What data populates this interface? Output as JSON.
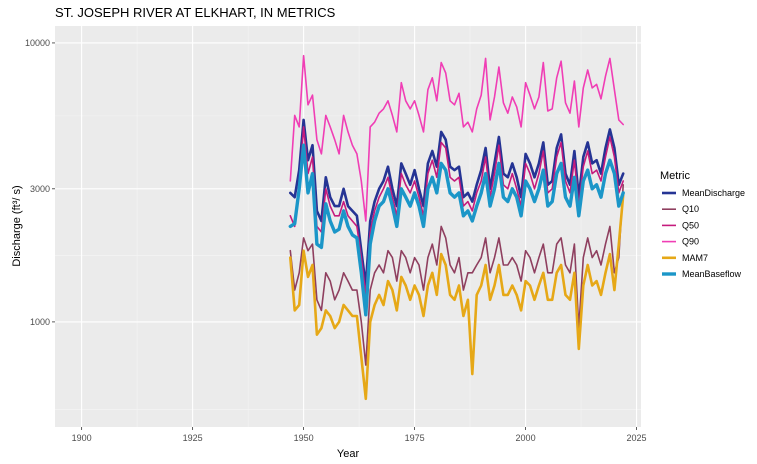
{
  "chart_data": {
    "type": "line",
    "title": "ST. JOSEPH RIVER AT ELKHART, IN  METRICS",
    "xlabel": "Year",
    "ylabel": "Discharge (ft³/ s)",
    "x_scale": "linear",
    "y_scale": "log",
    "xlim": [
      1894,
      2026
    ],
    "ylim": [
      420,
      11500
    ],
    "x_ticks": [
      1900,
      1925,
      1950,
      1975,
      2000,
      2025
    ],
    "x_tick_labels": [
      "1900",
      "1925",
      "1950",
      "1975",
      "2000",
      "2025"
    ],
    "y_ticks": [
      1000,
      3000,
      10000
    ],
    "y_tick_labels": [
      "1000",
      "3000",
      "10000"
    ],
    "grid": true,
    "legend": {
      "title": "Metric",
      "position": "right"
    },
    "x": [
      1947,
      1948,
      1949,
      1950,
      1951,
      1952,
      1953,
      1954,
      1955,
      1956,
      1957,
      1958,
      1959,
      1960,
      1961,
      1962,
      1963,
      1964,
      1965,
      1966,
      1967,
      1968,
      1969,
      1970,
      1971,
      1972,
      1973,
      1974,
      1975,
      1976,
      1977,
      1978,
      1979,
      1980,
      1981,
      1982,
      1983,
      1984,
      1985,
      1986,
      1987,
      1988,
      1989,
      1990,
      1991,
      1992,
      1993,
      1994,
      1995,
      1996,
      1997,
      1998,
      1999,
      2000,
      2001,
      2002,
      2003,
      2004,
      2005,
      2006,
      2007,
      2008,
      2009,
      2010,
      2011,
      2012,
      2013,
      2014,
      2015,
      2016,
      2017,
      2018,
      2019,
      2020,
      2021,
      2022
    ],
    "series": [
      {
        "name": "MeanDischarge",
        "color": "#253494",
        "width": 2.6,
        "values": [
          2900,
          2800,
          3500,
          5300,
          3800,
          4300,
          2500,
          2300,
          3300,
          2800,
          2600,
          2600,
          3000,
          2600,
          2500,
          2400,
          1800,
          1350,
          2300,
          2700,
          3000,
          3200,
          3600,
          3000,
          2600,
          3700,
          3400,
          3100,
          3500,
          3000,
          2600,
          3700,
          4100,
          3600,
          4800,
          4500,
          3600,
          3500,
          3600,
          2800,
          2900,
          2700,
          3100,
          3500,
          4200,
          3000,
          3700,
          4600,
          3400,
          3300,
          3700,
          3300,
          2800,
          4000,
          3700,
          3300,
          3700,
          4400,
          3100,
          3200,
          4200,
          4700,
          3400,
          3100,
          4100,
          2800,
          3900,
          4400,
          3700,
          3800,
          3400,
          4200,
          4900,
          4200,
          3100,
          3400
        ]
      },
      {
        "name": "Q10",
        "color": "#8f3f5f",
        "width": 1.6,
        "values": [
          1800,
          1300,
          1500,
          2000,
          1800,
          1900,
          1200,
          1100,
          1500,
          1400,
          1200,
          1300,
          1500,
          1400,
          1300,
          1300,
          1000,
          700,
          1300,
          1500,
          1600,
          1500,
          1800,
          1700,
          1400,
          1800,
          1700,
          1500,
          1700,
          1600,
          1300,
          1700,
          1900,
          1600,
          2200,
          2000,
          1600,
          1500,
          1700,
          1300,
          1500,
          1500,
          1600,
          1700,
          2000,
          1500,
          1700,
          2000,
          1600,
          1600,
          1700,
          1600,
          1400,
          1800,
          1700,
          1500,
          1700,
          1900,
          1500,
          1500,
          1900,
          2000,
          1600,
          1500,
          1900,
          950,
          1700,
          2000,
          1700,
          1800,
          1600,
          1900,
          2200,
          1500,
          1700,
          3100
        ]
      },
      {
        "name": "Q50",
        "color": "#c51b7d",
        "width": 1.6,
        "values": [
          2400,
          2200,
          3000,
          5000,
          3400,
          3900,
          2200,
          2100,
          3000,
          2600,
          2400,
          2400,
          2700,
          2400,
          2300,
          2200,
          1700,
          1250,
          2100,
          2500,
          2800,
          3000,
          3300,
          2800,
          2400,
          3400,
          3100,
          2900,
          3200,
          2800,
          2400,
          3400,
          3800,
          3300,
          4400,
          4200,
          3300,
          3200,
          3300,
          2600,
          2700,
          2500,
          2900,
          3200,
          3900,
          2800,
          3400,
          4300,
          3100,
          3000,
          3400,
          3000,
          2600,
          3700,
          3400,
          3000,
          3400,
          4100,
          2900,
          3000,
          3900,
          4400,
          3200,
          2900,
          3800,
          2600,
          3600,
          4100,
          3400,
          3500,
          3200,
          3900,
          4600,
          3900,
          2900,
          3200
        ]
      },
      {
        "name": "Q90",
        "color": "#f03eb5",
        "width": 1.6,
        "values": [
          3200,
          5500,
          5000,
          9000,
          6000,
          6500,
          4500,
          4000,
          5500,
          5000,
          4500,
          4000,
          5500,
          4800,
          4300,
          4000,
          3200,
          2300,
          5000,
          5200,
          5600,
          5800,
          6200,
          5500,
          4800,
          7200,
          6200,
          5800,
          6200,
          5500,
          4800,
          6800,
          7500,
          6200,
          8500,
          7800,
          6200,
          6000,
          6600,
          5000,
          5200,
          4800,
          5800,
          6500,
          8800,
          5300,
          6400,
          8200,
          6100,
          5600,
          6400,
          5900,
          5000,
          7200,
          6500,
          5800,
          6400,
          8500,
          5700,
          5800,
          7500,
          8600,
          6100,
          5600,
          7300,
          5000,
          6900,
          8000,
          6900,
          7100,
          6300,
          7600,
          8800,
          6800,
          5300,
          5100
        ]
      },
      {
        "name": "MAM7",
        "color": "#e6a817",
        "width": 2.6,
        "values": [
          1700,
          1100,
          1150,
          1800,
          1450,
          1600,
          900,
          950,
          1100,
          1050,
          950,
          1000,
          1150,
          1100,
          1050,
          1050,
          750,
          530,
          1000,
          1150,
          1250,
          1150,
          1400,
          1300,
          1100,
          1450,
          1350,
          1200,
          1350,
          1250,
          1050,
          1350,
          1500,
          1250,
          1750,
          1600,
          1250,
          1200,
          1350,
          1050,
          1200,
          650,
          1250,
          1350,
          1600,
          1200,
          1350,
          1600,
          1250,
          1250,
          1350,
          1250,
          1100,
          1400,
          1350,
          1200,
          1350,
          1500,
          1200,
          1200,
          1500,
          1600,
          1250,
          1200,
          1500,
          800,
          1350,
          1600,
          1350,
          1400,
          1250,
          1500,
          1750,
          1300,
          1900,
          2850
        ]
      },
      {
        "name": "MeanBaseflow",
        "color": "#1b96c8",
        "width": 3.4,
        "values": [
          2200,
          2250,
          3000,
          4300,
          2900,
          3400,
          1900,
          1850,
          2650,
          2300,
          2100,
          2150,
          2500,
          2200,
          2050,
          2000,
          1500,
          1060,
          1900,
          2300,
          2600,
          2700,
          3000,
          2600,
          2200,
          3000,
          2800,
          2600,
          2900,
          2600,
          2200,
          3000,
          3300,
          2900,
          3700,
          3500,
          2900,
          2800,
          2900,
          2400,
          2500,
          2300,
          2600,
          2900,
          3400,
          2600,
          3000,
          3700,
          2800,
          2700,
          3000,
          2800,
          2400,
          3200,
          3000,
          2700,
          3000,
          3500,
          2600,
          2700,
          3400,
          3700,
          2800,
          2600,
          3300,
          2400,
          3200,
          3500,
          3000,
          3100,
          2800,
          3400,
          3800,
          3400,
          2600,
          2900
        ]
      }
    ]
  }
}
